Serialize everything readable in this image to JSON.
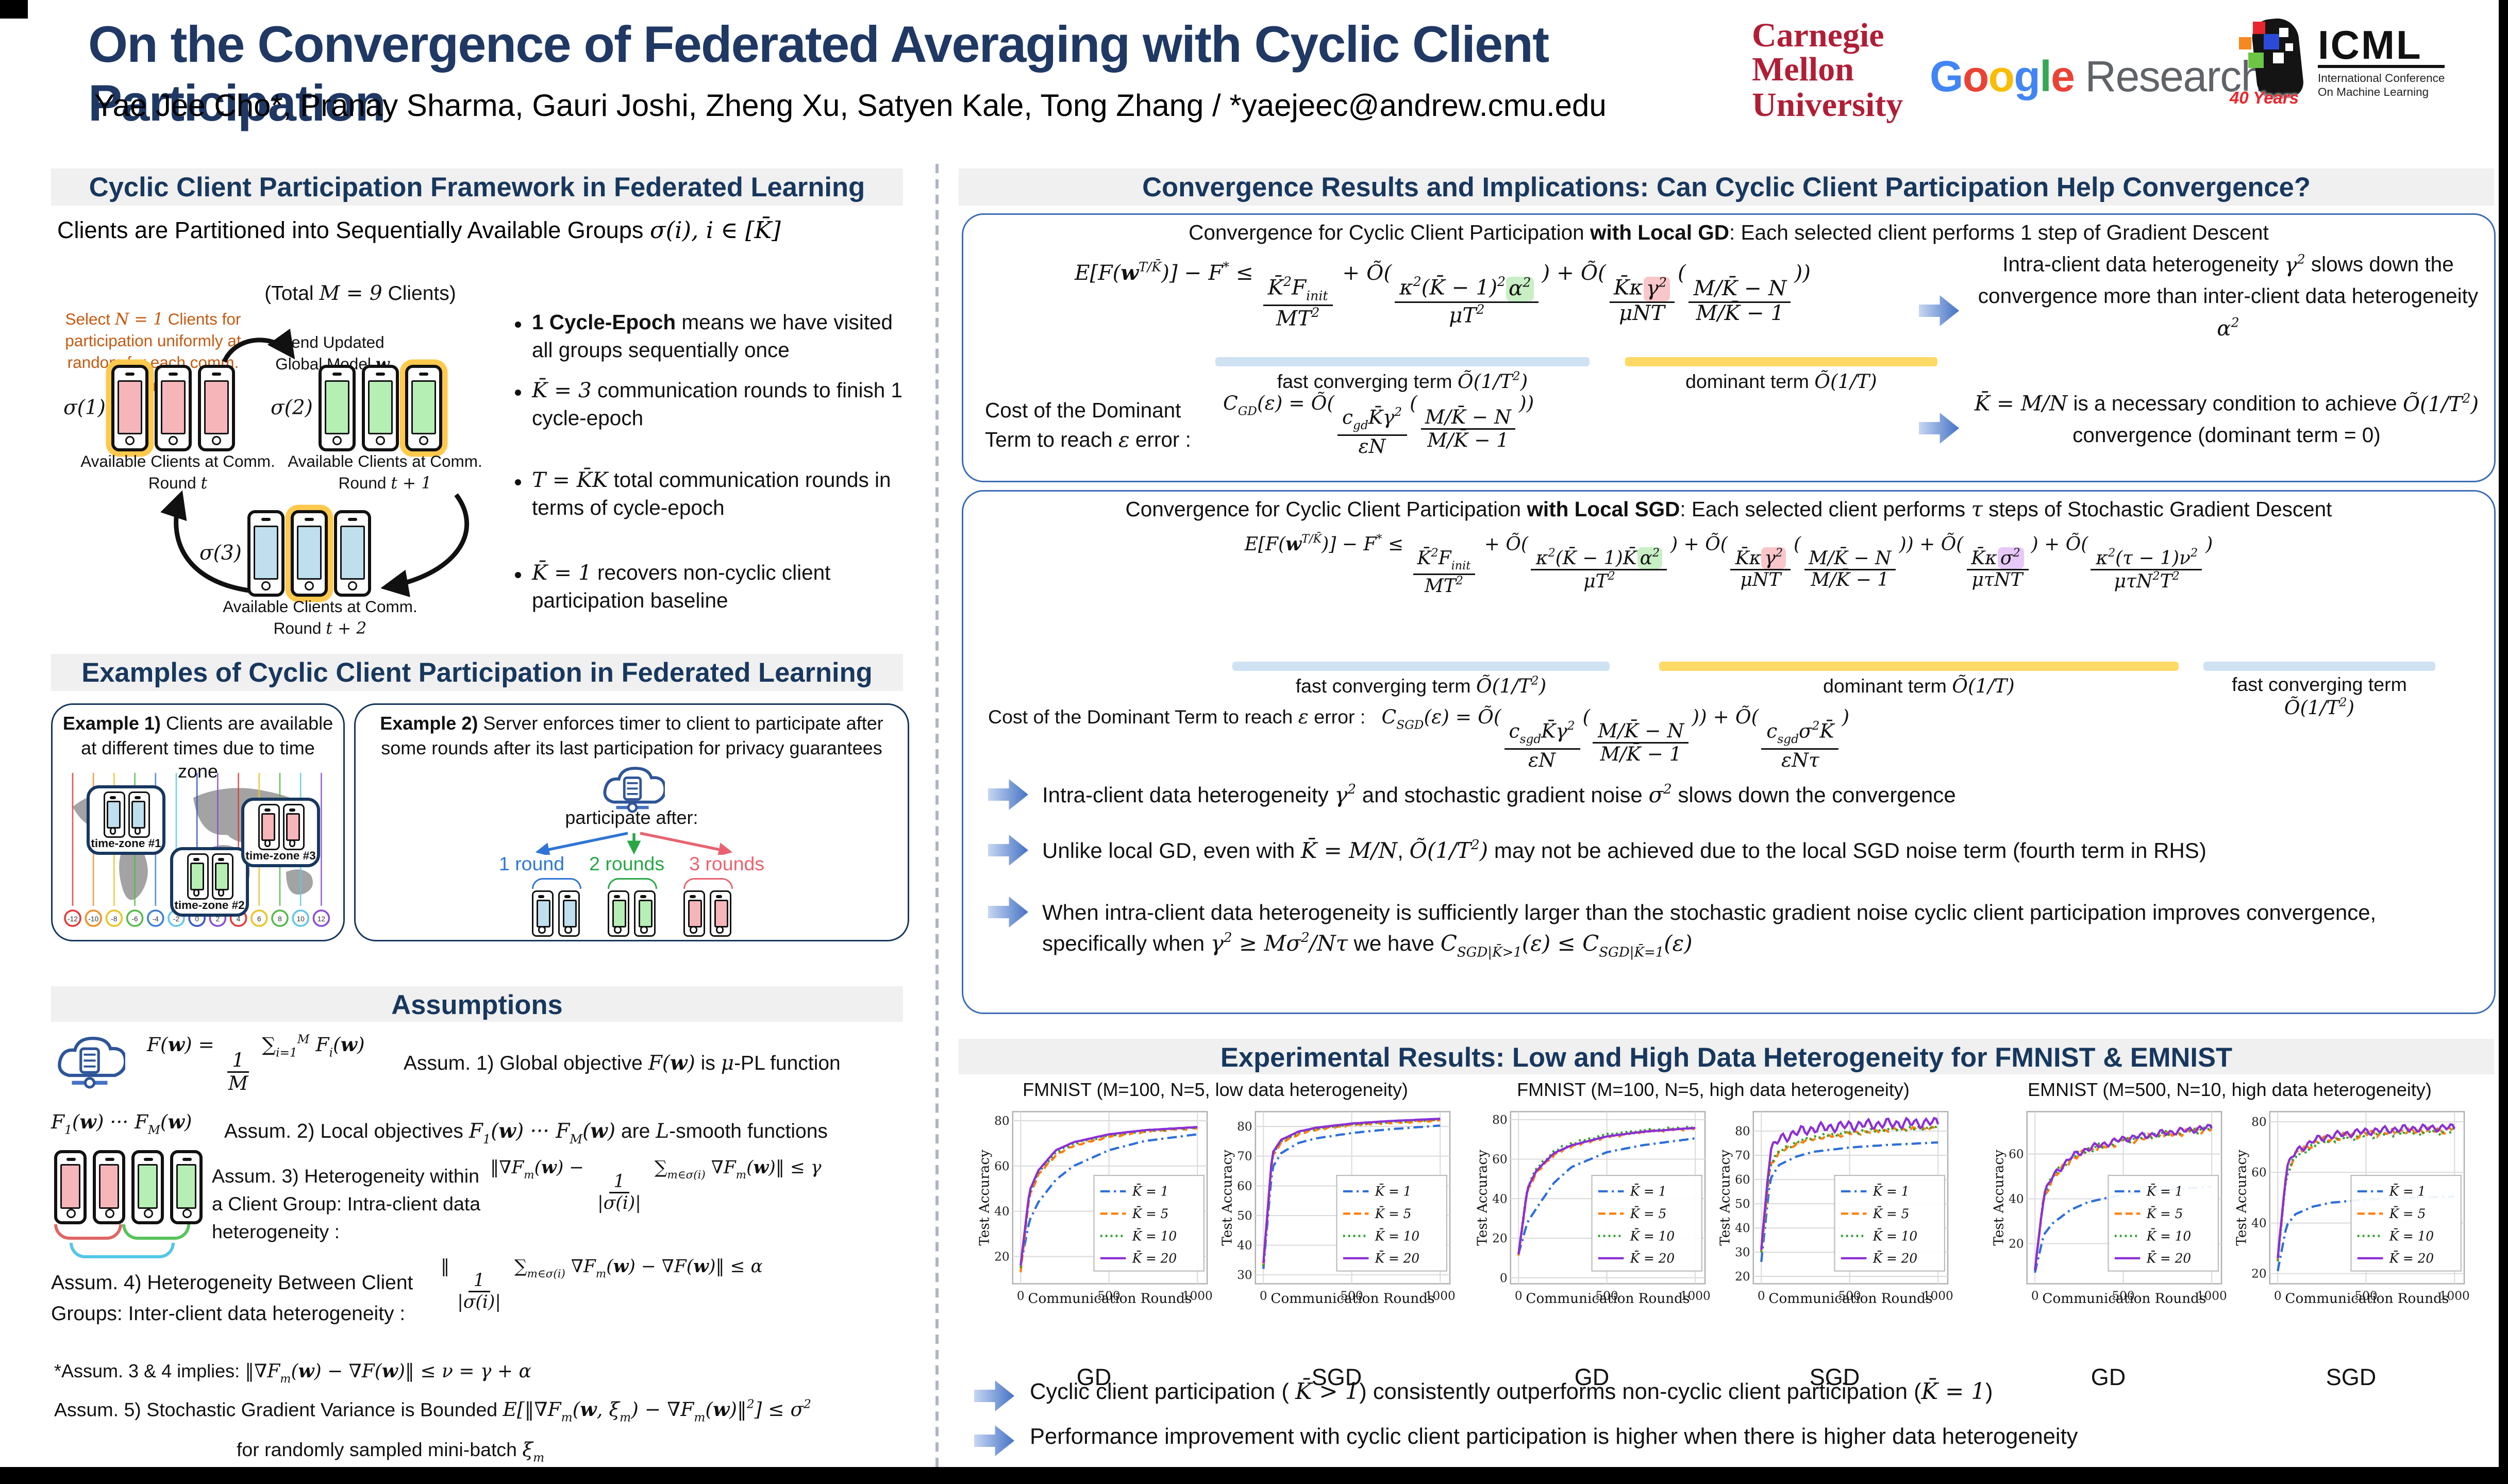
{
  "title": "On the Convergence of Federated Averaging with Cyclic Client Participation",
  "authors": "Yae Jee Cho*, Pranay Sharma, Gauri Joshi, Zheng Xu, Satyen Kale, Tong Zhang / *yaejeec@andrew.cmu.edu",
  "logos": {
    "cmu": [
      "Carnegie",
      "Mellon",
      "University"
    ],
    "google": {
      "letters": [
        "G",
        "o",
        "o",
        "g",
        "l",
        "e"
      ],
      "colors": [
        "#4285F4",
        "#EA4335",
        "#FBBC05",
        "#4285F4",
        "#34A853",
        "#EA4335"
      ],
      "suffix": "Research"
    },
    "icml": {
      "name": "ICML",
      "line1": "International Conference",
      "line2": "On Machine Learning",
      "badge": "40 Years",
      "pixel_colors": [
        "#E8262D",
        "#F5891F",
        "#6CC644",
        "#2B4BD7"
      ]
    }
  },
  "left": {
    "header1": "Cyclic Client Participation Framework in Federated Learning",
    "partition": "Clients are Partitioned into Sequentially Available Groups  ~m{σ(i), i ∈ [K̄]}",
    "total": "(Total  ~m{M = 9}  Clients)",
    "select_note": "Select  ~m{N = 1}  Clients for participation uniformly at random for each comm. round",
    "send_note": "Send Updated Global Model ~m{~b{w}}",
    "groups": [
      {
        "sigma": "~m{σ(1)}",
        "caption": "Available Clients at Comm. Round ~m{t}"
      },
      {
        "sigma": "~m{σ(2)}",
        "caption": "Available Clients at Comm. Round ~m{t + 1}"
      },
      {
        "sigma": "~m{σ(3)}",
        "caption": "Available Clients at Comm. Round ~m{t + 2}"
      }
    ],
    "bullets": [
      "~b{1 Cycle-Epoch} means we have visited all groups sequentially once",
      "~m{K̄ = 3} communication rounds to finish 1 cycle-epoch",
      "~m{T = K̄K}  total communication rounds in terms of cycle-epoch",
      "~m{K̄ = 1} recovers non-cyclic client participation baseline"
    ],
    "header2": "Examples of Cyclic Client Participation in Federated Learning",
    "example1": {
      "title": "~b{Example 1)} Clients are available at different times due to time zone",
      "zones": [
        "time-zone #1",
        "time-zone #2",
        "time-zone #3"
      ],
      "tz": [
        "-12",
        "-10",
        "-8",
        "-6",
        "-4",
        "-2",
        "0",
        "2",
        "4",
        "6",
        "8",
        "10",
        "12"
      ],
      "tz_colors": [
        "#E23B3B",
        "#F0912D",
        "#E8C52A",
        "#59B94C",
        "#3F7FD6",
        "#64C7E0",
        "#3B55C4",
        "#8A4FD3",
        "#E23B3B",
        "#E8C52A",
        "#59B94C",
        "#64C7E0",
        "#8A4FD3"
      ]
    },
    "example2": {
      "title": "~b{Example 2)} Server enforces timer to client to participate after some rounds after its last participation for privacy guarantees",
      "participate": "participate after:",
      "rounds": [
        "1 round",
        "2 rounds",
        "3 rounds"
      ],
      "round_colors": [
        "#2E75D6",
        "#28A745",
        "#E8636F"
      ]
    },
    "header3": "Assumptions",
    "a1_formula": "~m{F(~b{w}) = {1¦M} ∑_{i=1}^{M} F_{i}(~b{w})}",
    "a1_text": "Assum. 1) Global objective ~m{F(~b{w})} is ~m{μ}-PL function",
    "a2_side": "~m{F_{1}(~b{w})  ···  F_{M}(~b{w})}",
    "a2_text": "Assum. 2) Local objectives ~m{F_{1}(~b{w}) ··· F_{M}(~b{w})} are ~m{L}-smooth functions",
    "a3_text": "Assum. 3) Heterogeneity within a Client Group: Intra-client data heterogeneity :",
    "a3_formula": "~m{‖∇F_{m}(~b{w}) − {1¦|σ(i)|} ∑_{m∈σ(i)} ∇F_{m}(~b{w})‖ ≤ γ}",
    "a4_text": "Assum. 4) Heterogeneity Between Client Groups: Inter-client data heterogeneity :",
    "a4_formula": "~m{‖{1¦|σ(i)|} ∑_{m∈σ(i)} ∇F_{m}(~b{w}) − ∇F(~b{w})‖ ≤ α}",
    "a34": "*Assum. 3 & 4 implies:  ~m{‖∇F_{m}(~b{w}) − ∇F(~b{w})‖ ≤ ν = γ + α}",
    "a5_text": "Assum. 5) Stochastic Gradient Variance is Bounded  ~m{E[‖∇F_{m}(~b{w}, ξ_{m}) − ∇F_{m}(~b{w})‖^{2}] ≤ σ^{2}}",
    "a5_text2": "for randomly sampled mini-batch ~m{ξ_{m}}"
  },
  "right": {
    "header1": "Convergence Results and Implications: Can Cyclic Client Participation Help Convergence?",
    "gd": {
      "title": "Convergence for Cyclic Client Participation ~b{with Local GD}: Each selected client performs 1 step of Gradient Descent",
      "formula": "~m{E[F(~b{w}^{T/K̄})] − F^{*} ≤ {K̄^{2}F_{init}¦MT^{2}} + Õ({κ^{2}(K̄ − 1)^{2}~g{α^{2}}¦μT^{2}}) + Õ({K̄κ~p{γ^{2}}¦μNT}({M/K̄ − N¦M/K̄ − 1}))}",
      "under1": "fast converging term  ~m{Õ(1/T^{2})}",
      "under2": "dominant term  ~m{Õ(1/T)}",
      "note": "Intra-client data heterogeneity ~m{γ^{2}} slows down the convergence more than inter-client data heterogeneity ~m{α^{2}}",
      "cost_label": "Cost of the Dominant Term to reach ~m{ε} error :",
      "cost_formula": "~m{C_{GD}(ε) = Õ({c_{gd}K̄γ^{2}¦εN}({M/K̄ − N¦M/K̄ − 1}))}",
      "cost_note": "~m{K̄ = M/N} is a necessary condition to achieve ~m{Õ(1/T^{2})} convergence (dominant term = 0)"
    },
    "sgd": {
      "title": "Convergence for Cyclic Client Participation ~b{with Local SGD}: Each selected client performs ~m{τ} steps of Stochastic Gradient Descent",
      "formula": "~m{E[F(~b{w}^{T/K̄})] − F^{*} ≤ {K̄^{2}F_{init}¦MT^{2}} + Õ({κ^{2}(K̄ − 1)K̄~g{α^{2}}¦μT^{2}}) + Õ({K̄κ~p{γ^{2}}¦μNT}({M/K̄ − N¦M/K̄ − 1})) + Õ({K̄κ~v{σ^{2}}¦μτNT}) + Õ({κ^{2}(τ − 1)ν^{2}¦μτN^{2}T^{2}})}",
      "under1": "fast converging term  ~m{Õ(1/T^{2})}",
      "under2": "dominant term  ~m{Õ(1/T)}",
      "under3": "fast converging term ~m{Õ(1/T^{2})}",
      "cost_label": "Cost of the Dominant Term to reach ~m{ε} error :",
      "cost_formula": "~m{C_{SGD}(ε) = Õ({c_{sgd}K̄γ^{2}¦εN}({M/K̄ − N¦M/K̄ − 1})) + Õ({c_{sgd}σ^{2}K̄¦εNτ})}",
      "bullets": [
        "Intra-client data heterogeneity ~m{γ^{2}} and stochastic gradient noise ~m{σ^{2}} slows down the convergence",
        "Unlike local GD, even with ~m{K̄ = M/N},  ~m{Õ(1/T^{2})} may not be achieved due to the local SGD noise term (fourth term in RHS)",
        "When intra-client data heterogeneity is sufficiently larger than the stochastic gradient noise cyclic client participation improves convergence, specifically when ~m{γ^{2} ≥ Mσ^{2}/Nτ}  we have  ~m{C_{SGD|K̄>1}(ε) ≤ C_{SGD|K̄=1}(ε)}"
      ]
    },
    "header2": "Experimental Results: Low and High Data Heterogeneity for FMNIST & EMNIST",
    "exp_groups": [
      "FMNIST (M=100, N=5, low data heterogeneity)",
      "FMNIST (M=100, N=5, high data heterogeneity)",
      "EMNIST (M=500, N=10, high data heterogeneity)"
    ],
    "chart_captions": [
      "GD",
      "SGD"
    ],
    "bottom_bullets": [
      "Cyclic client participation ( ~m{K̄ > 1}) consistently outperforms non-cyclic client participation (~m{K̄ = 1})",
      "Performance improvement with cyclic client participation is higher when there is higher data heterogeneity"
    ]
  },
  "chart_data": [
    {
      "type": "line",
      "title": "FMNIST low heterogeneity - GD",
      "xlabel": "Communication Rounds",
      "ylabel": "Test Accuracy",
      "xlim": [
        -45,
        1055
      ],
      "ylim": [
        8,
        84
      ],
      "xticks": [
        0,
        500,
        1000
      ],
      "yticks": [
        20,
        40,
        60,
        80
      ],
      "x_anchors": [
        0,
        50,
        100,
        200,
        300,
        500,
        700,
        1000
      ],
      "series": [
        {
          "name": "K̄ = 1",
          "color": "#2E6FD8",
          "dash": "dashdot",
          "noise": 0,
          "values": [
            16,
            36,
            44,
            54,
            60,
            67,
            71,
            74
          ]
        },
        {
          "name": "K̄ = 5",
          "color": "#FF7F0E",
          "dash": "dashed",
          "noise": 0.3,
          "values": [
            13,
            47,
            56,
            65,
            69,
            73,
            75,
            76.8
          ]
        },
        {
          "name": "K̄ = 10",
          "color": "#2CA02C",
          "dash": "dotted",
          "noise": 0.3,
          "values": [
            15,
            48,
            57,
            66,
            70,
            73.6,
            75.5,
            77
          ]
        },
        {
          "name": "K̄ = 20",
          "color": "#8B2FD6",
          "dash": "solid",
          "noise": 0,
          "values": [
            16,
            49,
            58,
            67,
            70.5,
            74,
            75.8,
            77.2
          ]
        }
      ]
    },
    {
      "type": "line",
      "title": "FMNIST low heterogeneity - SGD",
      "xlabel": "Communication Rounds",
      "ylabel": "Test Accuracy",
      "xlim": [
        -45,
        1055
      ],
      "ylim": [
        27,
        85
      ],
      "xticks": [
        0,
        500,
        1000
      ],
      "yticks": [
        30,
        40,
        50,
        60,
        70,
        80
      ],
      "x_anchors": [
        0,
        50,
        100,
        200,
        300,
        500,
        700,
        1000
      ],
      "series": [
        {
          "name": "K̄ = 1",
          "color": "#2E6FD8",
          "dash": "dashdot",
          "noise": 0,
          "values": [
            32,
            66,
            71,
            74.5,
            76,
            77.8,
            79,
            80.3
          ]
        },
        {
          "name": "K̄ = 5",
          "color": "#FF7F0E",
          "dash": "dashed",
          "noise": 0.25,
          "values": [
            33,
            70,
            74.5,
            77.5,
            79,
            80.4,
            81.2,
            82.2
          ]
        },
        {
          "name": "K̄ = 10",
          "color": "#2CA02C",
          "dash": "dotted",
          "noise": 0.25,
          "values": [
            33,
            70.5,
            75,
            78,
            79.3,
            80.7,
            81.5,
            82.4
          ]
        },
        {
          "name": "K̄ = 20",
          "color": "#8B2FD6",
          "dash": "solid",
          "noise": 0,
          "values": [
            34,
            71,
            75.5,
            78.3,
            79.6,
            81,
            81.8,
            82.6
          ]
        }
      ]
    },
    {
      "type": "line",
      "title": "FMNIST high heterogeneity - GD",
      "xlabel": "Communication Rounds",
      "ylabel": "Test Accuracy",
      "xlim": [
        -45,
        1055
      ],
      "ylim": [
        -3,
        84
      ],
      "xticks": [
        0,
        500,
        1000
      ],
      "yticks": [
        0,
        20,
        40,
        60,
        80
      ],
      "x_anchors": [
        0,
        50,
        100,
        200,
        300,
        500,
        700,
        1000
      ],
      "series": [
        {
          "name": "K̄ = 1",
          "color": "#2E6FD8",
          "dash": "dashdot",
          "noise": 0,
          "values": [
            12,
            28,
            35,
            48,
            56,
            63.5,
            67,
            70.5
          ]
        },
        {
          "name": "K̄ = 5",
          "color": "#FF7F0E",
          "dash": "dashed",
          "noise": 0.5,
          "values": [
            11,
            44,
            53,
            62,
            66.5,
            71,
            73.5,
            75.5
          ]
        },
        {
          "name": "K̄ = 10",
          "color": "#2CA02C",
          "dash": "dotted",
          "noise": 0.5,
          "values": [
            12,
            46,
            55,
            64,
            68,
            72.5,
            74.5,
            76.2
          ]
        },
        {
          "name": "K̄ = 20",
          "color": "#8B2FD6",
          "dash": "solid",
          "noise": 0,
          "values": [
            12,
            45,
            54,
            63,
            67,
            71.5,
            73.8,
            75.8
          ]
        }
      ]
    },
    {
      "type": "line",
      "title": "FMNIST high heterogeneity - SGD",
      "xlabel": "Communication Rounds",
      "ylabel": "Test Accuracy",
      "xlim": [
        -45,
        1055
      ],
      "ylim": [
        17,
        88
      ],
      "xticks": [
        0,
        500,
        1000
      ],
      "yticks": [
        20,
        30,
        40,
        50,
        60,
        70,
        80
      ],
      "x_anchors": [
        0,
        50,
        100,
        200,
        300,
        500,
        700,
        1000
      ],
      "series": [
        {
          "name": "K̄ = 1",
          "color": "#2E6FD8",
          "dash": "dashdot",
          "noise": 0,
          "values": [
            26,
            60,
            66,
            69.5,
            71.5,
            73.2,
            74.2,
            75.3
          ]
        },
        {
          "name": "K̄ = 5",
          "color": "#FF7F0E",
          "dash": "dashed",
          "noise": 0.6,
          "values": [
            30,
            66,
            71,
            75,
            77,
            79,
            80.2,
            81.3
          ]
        },
        {
          "name": "K̄ = 10",
          "color": "#2CA02C",
          "dash": "dotted",
          "noise": 0.6,
          "values": [
            30,
            66.5,
            71.5,
            75.5,
            77.5,
            79.4,
            80.5,
            81.5
          ]
        },
        {
          "name": "K̄ = 20",
          "color": "#8B2FD6",
          "dash": "solid",
          "noise": 1.6,
          "values": [
            31,
            72,
            76.5,
            79.5,
            81,
            82.3,
            83,
            83.6
          ]
        }
      ]
    },
    {
      "type": "line",
      "title": "EMNIST high heterogeneity - GD",
      "xlabel": "Communication Rounds",
      "ylabel": "Test Accuracy",
      "xlim": [
        -45,
        1055
      ],
      "ylim": [
        2,
        79
      ],
      "xticks": [
        0,
        500,
        1000
      ],
      "yticks": [
        20,
        40,
        60
      ],
      "x_anchors": [
        0,
        50,
        100,
        200,
        300,
        500,
        700,
        1000
      ],
      "series": [
        {
          "name": "K̄ = 1",
          "color": "#2E6FD8",
          "dash": "dashdot",
          "noise": 0,
          "values": [
            7,
            24,
            29,
            35,
            38.5,
            42,
            43.8,
            45.5
          ]
        },
        {
          "name": "K̄ = 5",
          "color": "#FF7F0E",
          "dash": "dashed",
          "noise": 1.1,
          "values": [
            8,
            41,
            49,
            57.5,
            61.5,
            65.8,
            68.3,
            71.3
          ]
        },
        {
          "name": "K̄ = 10",
          "color": "#2CA02C",
          "dash": "dotted",
          "noise": 1.1,
          "values": [
            8,
            42,
            50,
            58,
            62,
            66.2,
            68.8,
            71.6
          ]
        },
        {
          "name": "K̄ = 20",
          "color": "#8B2FD6",
          "dash": "solid",
          "noise": 1.1,
          "values": [
            8,
            42,
            50,
            58.5,
            62.5,
            66.8,
            69.2,
            72
          ]
        }
      ]
    },
    {
      "type": "line",
      "title": "EMNIST high heterogeneity - SGD",
      "xlabel": "Communication Rounds",
      "ylabel": "Test Accuracy",
      "xlim": [
        -45,
        1055
      ],
      "ylim": [
        16,
        84
      ],
      "xticks": [
        0,
        500,
        1000
      ],
      "yticks": [
        20,
        40,
        60,
        80
      ],
      "x_anchors": [
        0,
        50,
        100,
        200,
        300,
        500,
        700,
        1000
      ],
      "series": [
        {
          "name": "K̄ = 1",
          "color": "#2E6FD8",
          "dash": "dashdot",
          "noise": 0,
          "values": [
            21,
            39,
            43.5,
            46.5,
            48,
            49.3,
            49.9,
            50.4
          ]
        },
        {
          "name": "K̄ = 5",
          "color": "#FF7F0E",
          "dash": "dashed",
          "noise": 1.1,
          "values": [
            25,
            61,
            67,
            71.5,
            73.5,
            75.3,
            76.2,
            76.9
          ]
        },
        {
          "name": "K̄ = 10",
          "color": "#2CA02C",
          "dash": "dotted",
          "noise": 1.1,
          "values": [
            25,
            60,
            66,
            70.8,
            73,
            74.8,
            75.8,
            76.4
          ]
        },
        {
          "name": "K̄ = 20",
          "color": "#8B2FD6",
          "dash": "solid",
          "noise": 1.1,
          "values": [
            26,
            62,
            68,
            72.5,
            74.5,
            76.2,
            77.2,
            77.8
          ]
        }
      ]
    }
  ]
}
